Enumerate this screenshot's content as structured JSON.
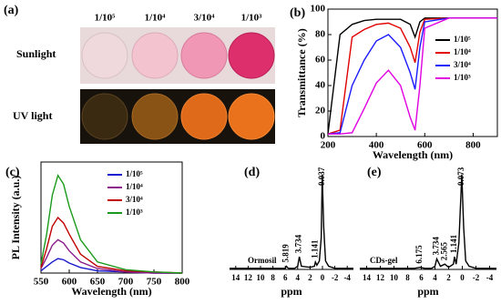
{
  "photo": {
    "title": "(a)",
    "columns": [
      "1/10⁵",
      "1/10⁴",
      "3/10⁴",
      "1/10³"
    ],
    "rows": [
      "Sunlight",
      "UV light"
    ]
  },
  "chart_data": [
    {
      "type": "line",
      "title": "(b)",
      "xlabel": "Wavelength (nm)",
      "ylabel": "Transmittance (%)",
      "x": [
        200,
        250,
        300,
        350,
        400,
        450,
        500,
        540,
        560,
        580,
        600,
        700,
        900
      ],
      "xlim": [
        200,
        900
      ],
      "xticks": [
        200,
        400,
        600,
        800
      ],
      "ylim": [
        0,
        100
      ],
      "yticks": [
        0,
        20,
        40,
        60,
        80,
        100
      ],
      "legend": "upper right",
      "series": [
        {
          "name": "1/10⁵",
          "color": "#000000",
          "values": [
            2,
            80,
            88,
            91,
            92,
            92,
            92,
            88,
            78,
            90,
            93,
            93,
            93
          ]
        },
        {
          "name": "1/10⁴",
          "color": "#e00000",
          "values": [
            2,
            5,
            78,
            84,
            88,
            89,
            85,
            70,
            58,
            82,
            92,
            93,
            93
          ]
        },
        {
          "name": "3/10⁴",
          "color": "#1a1aff",
          "values": [
            2,
            3,
            40,
            60,
            75,
            80,
            70,
            50,
            37,
            70,
            90,
            93,
            93
          ]
        },
        {
          "name": "1/10³",
          "color": "#e000e0",
          "values": [
            2,
            2,
            3,
            22,
            42,
            52,
            40,
            15,
            5,
            40,
            85,
            93,
            93
          ]
        }
      ]
    },
    {
      "type": "line",
      "title": "(c)",
      "xlabel": "Wavelength (nm)",
      "ylabel": "PL Intensity (a.u.)",
      "x": [
        550,
        560,
        570,
        580,
        590,
        600,
        620,
        650,
        700,
        750,
        800
      ],
      "xlim": [
        550,
        800
      ],
      "xticks": [
        550,
        600,
        650,
        700,
        750,
        800
      ],
      "ylim": [
        0,
        100
      ],
      "legend": "upper right",
      "series": [
        {
          "name": "1/10⁵",
          "color": "#1a1acc",
          "values": [
            2,
            6,
            10,
            13,
            12,
            9,
            5,
            2,
            1,
            0,
            0
          ]
        },
        {
          "name": "1/10⁴",
          "color": "#8b1a8b",
          "values": [
            4,
            14,
            25,
            30,
            27,
            20,
            10,
            4,
            1,
            0,
            0
          ]
        },
        {
          "name": "3/10⁴",
          "color": "#c00000",
          "values": [
            5,
            22,
            42,
            50,
            45,
            35,
            17,
            6,
            2,
            1,
            0
          ]
        },
        {
          "name": "1/10³",
          "color": "#1a9a1a",
          "values": [
            8,
            35,
            70,
            88,
            80,
            60,
            30,
            10,
            3,
            1,
            0
          ]
        }
      ]
    },
    {
      "type": "nmr",
      "title": "(d)",
      "xlabel": "ppm",
      "sample": "Ormosil",
      "x": [
        15,
        10,
        7,
        6,
        5.819,
        5.5,
        4.5,
        4,
        3.734,
        3.4,
        2,
        1.3,
        1.141,
        0.9,
        0.5,
        0.2,
        0.037,
        -0.2,
        -0.5,
        -1,
        -2,
        -5
      ],
      "xlim": [
        15,
        -5
      ],
      "xticks": [
        14,
        12,
        10,
        8,
        6,
        4,
        2,
        0,
        -2,
        -4
      ],
      "ylim": [
        0,
        100
      ],
      "peak_labels": [
        5.819,
        3.734,
        1.141,
        0.037
      ],
      "series": [
        {
          "color": "#000000",
          "values": [
            1,
            1,
            1,
            1,
            3,
            1,
            1,
            3,
            12,
            3,
            2,
            3,
            7,
            4,
            8,
            30,
            90,
            40,
            8,
            3,
            1,
            1
          ]
        }
      ]
    },
    {
      "type": "nmr",
      "title": "(e)",
      "xlabel": "ppm",
      "sample": "CDs-gel",
      "x": [
        15,
        10,
        7,
        6.175,
        5.5,
        4.5,
        4,
        3.734,
        3.2,
        2.565,
        2,
        1.3,
        1.141,
        0.9,
        0.5,
        0.073,
        -0.2,
        -0.5,
        -1,
        -2,
        -5
      ],
      "xlim": [
        15,
        -5
      ],
      "xticks": [
        14,
        12,
        10,
        8,
        6,
        4,
        2,
        0,
        -2,
        -4
      ],
      "ylim": [
        0,
        100
      ],
      "peak_labels": [
        6.175,
        3.734,
        2.565,
        1.141,
        0.073
      ],
      "series": [
        {
          "color": "#000000",
          "values": [
            1,
            1,
            1,
            2,
            1,
            1,
            3,
            10,
            3,
            5,
            2,
            5,
            12,
            5,
            25,
            90,
            40,
            8,
            3,
            1,
            1
          ]
        }
      ]
    }
  ]
}
